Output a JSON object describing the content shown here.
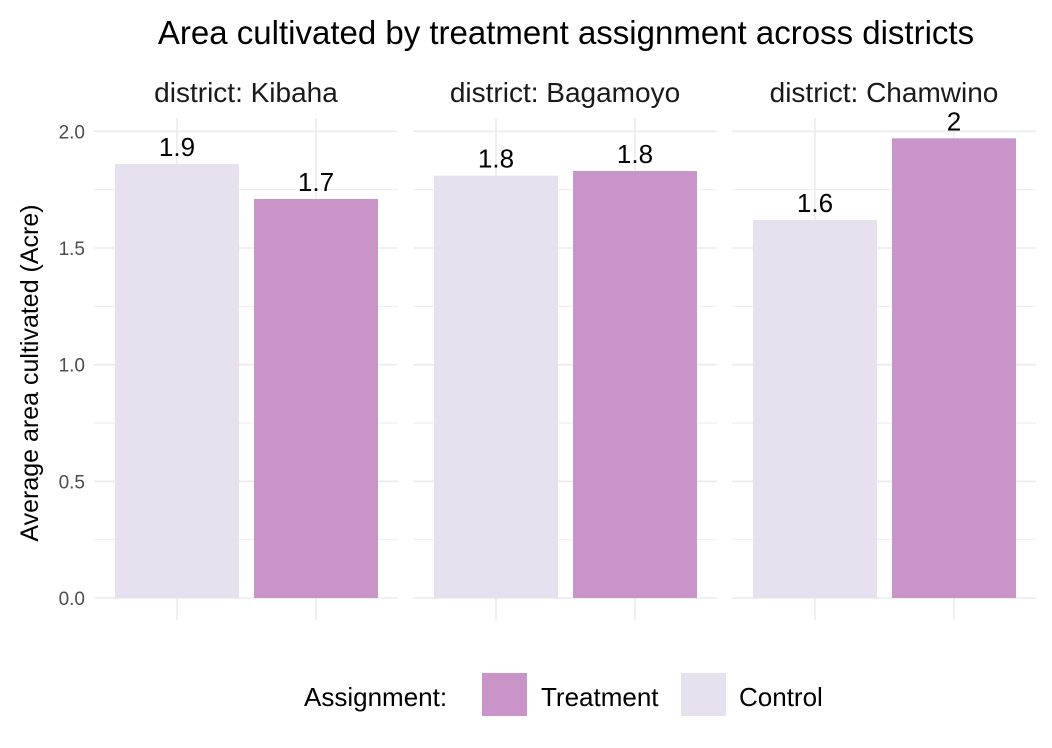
{
  "chart_data": {
    "type": "bar",
    "title": "Area cultivated by treatment assignment across districts",
    "ylabel": "Average area cultivated (Acre)",
    "ylim": [
      0,
      2.1
    ],
    "yticks": [
      "0.0",
      "0.5",
      "1.0",
      "1.5",
      "2.0"
    ],
    "facet_prefix": "district: ",
    "facets": [
      {
        "strip": "district: Kibaha",
        "values": {
          "Control": 1.86,
          "Treatment": 1.71
        },
        "labels": {
          "Control": "1.9",
          "Treatment": "1.7"
        }
      },
      {
        "strip": "district: Bagamoyo",
        "values": {
          "Control": 1.81,
          "Treatment": 1.83
        },
        "labels": {
          "Control": "1.8",
          "Treatment": "1.8"
        }
      },
      {
        "strip": "district: Chamwino",
        "values": {
          "Control": 1.62,
          "Treatment": 1.97
        },
        "labels": {
          "Control": "1.6",
          "Treatment": "2"
        }
      }
    ],
    "bar_order": [
      "Control",
      "Treatment"
    ],
    "legend": {
      "title": "Assignment:",
      "placement": "bottom",
      "items": [
        {
          "name": "Treatment",
          "color": "#c994c7"
        },
        {
          "name": "Control",
          "color": "#e7e1ef"
        }
      ]
    },
    "grid": true
  }
}
